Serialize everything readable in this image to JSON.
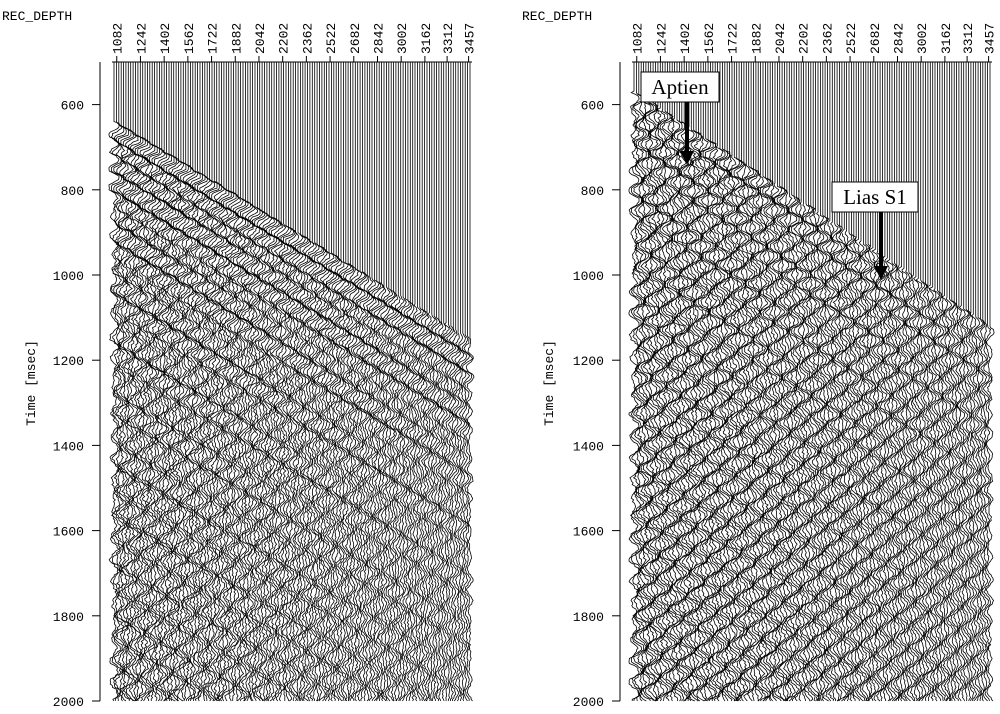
{
  "chart_data": [
    {
      "type": "wiggle",
      "x_label": "REC_DEPTH",
      "y_label": "Time [msec]",
      "xticks": [
        1082,
        1242,
        1402,
        1562,
        1722,
        1882,
        2042,
        2202,
        2362,
        2522,
        2682,
        2842,
        3002,
        3162,
        3312,
        3457
      ],
      "xlim": [
        1050,
        3480
      ],
      "ylim": [
        500,
        2000
      ],
      "yticks": [
        600,
        800,
        1000,
        1200,
        1400,
        1600,
        1800,
        2000
      ]
    },
    {
      "type": "wiggle",
      "x_label": "REC_DEPTH",
      "y_label": "Time [msec]",
      "xticks": [
        1082,
        1242,
        1402,
        1562,
        1722,
        1882,
        2042,
        2202,
        2362,
        2522,
        2682,
        2842,
        3002,
        3162,
        3312,
        3457
      ],
      "xlim": [
        1050,
        3480
      ],
      "ylim": [
        500,
        2000
      ],
      "yticks": [
        600,
        800,
        1000,
        1200,
        1400,
        1600,
        1800,
        2000
      ],
      "annotations": [
        "Aptien",
        "Lias S1"
      ]
    }
  ]
}
